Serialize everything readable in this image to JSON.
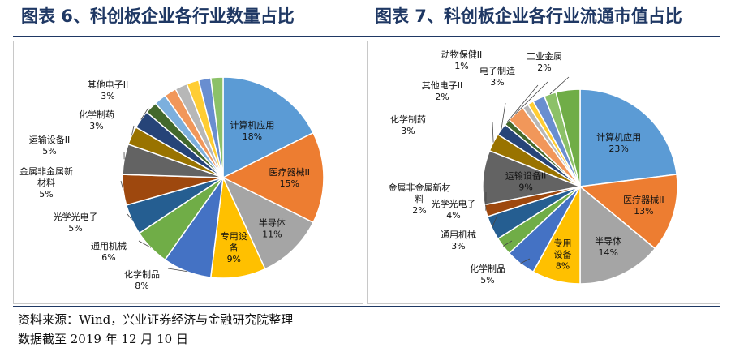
{
  "titles": {
    "left": "图表 6、科创板企业各行业数量占比",
    "right": "图表 7、科创板企业各行业流通市值占比"
  },
  "footer": {
    "source": "资料来源：Wind，兴业证券经济与金融研究院整理",
    "date": "数据截至 2019 年 12 月 10 日"
  },
  "chart_data": [
    {
      "type": "pie",
      "title": "图表 6、科创板企业各行业数量占比",
      "unit": "%",
      "slices": [
        {
          "label": "计算机应用",
          "value": 18,
          "color": "#5b9bd5"
        },
        {
          "label": "医疗器械II",
          "value": 15,
          "color": "#ed7d31"
        },
        {
          "label": "半导体",
          "value": 11,
          "color": "#a5a5a5"
        },
        {
          "label": "专用设备",
          "value": 9,
          "color": "#ffc000"
        },
        {
          "label": "化学制品",
          "value": 8,
          "color": "#4472c4"
        },
        {
          "label": "通用机械",
          "value": 6,
          "color": "#70ad47"
        },
        {
          "label": "光学光电子",
          "value": 5,
          "color": "#255e91"
        },
        {
          "label": "金属非金属新材料",
          "value": 5,
          "color": "#9e480e"
        },
        {
          "label": "运输设备II",
          "value": 5,
          "color": "#636363"
        },
        {
          "label": "化学制药",
          "value": 3,
          "color": "#997300"
        },
        {
          "label": "其他电子II",
          "value": 3,
          "color": "#264478"
        },
        {
          "label": "",
          "value": 2,
          "color": "#43682b"
        },
        {
          "label": "",
          "value": 2,
          "color": "#7cafdd"
        },
        {
          "label": "",
          "value": 2,
          "color": "#f1975a"
        },
        {
          "label": "",
          "value": 2,
          "color": "#b7b7b7"
        },
        {
          "label": "",
          "value": 2,
          "color": "#ffcd33"
        },
        {
          "label": "",
          "value": 2,
          "color": "#698ed0"
        },
        {
          "label": "",
          "value": 2,
          "color": "#8cc168"
        }
      ]
    },
    {
      "type": "pie",
      "title": "图表 7、科创板企业各行业流通市值占比",
      "unit": "%",
      "slices": [
        {
          "label": "计算机应用",
          "value": 23,
          "color": "#5b9bd5"
        },
        {
          "label": "医疗器械II",
          "value": 13,
          "color": "#ed7d31"
        },
        {
          "label": "半导体",
          "value": 14,
          "color": "#a5a5a5"
        },
        {
          "label": "专用设备",
          "value": 8,
          "color": "#ffc000"
        },
        {
          "label": "化学制品",
          "value": 5,
          "color": "#4472c4"
        },
        {
          "label": "通用机械",
          "value": 3,
          "color": "#70ad47"
        },
        {
          "label": "光学光电子",
          "value": 4,
          "color": "#255e91"
        },
        {
          "label": "金属非金属新材料",
          "value": 2,
          "color": "#9e480e"
        },
        {
          "label": "运输设备II",
          "value": 9,
          "color": "#636363"
        },
        {
          "label": "化学制药",
          "value": 3,
          "color": "#997300"
        },
        {
          "label": "其他电子II",
          "value": 2,
          "color": "#264478"
        },
        {
          "label": "动物保健II",
          "value": 1,
          "color": "#43682b"
        },
        {
          "label": "电子制造",
          "value": 3,
          "color": "#f1975a"
        },
        {
          "label": "",
          "value": 1,
          "color": "#b7b7b7"
        },
        {
          "label": "",
          "value": 1,
          "color": "#ffcd33"
        },
        {
          "label": "",
          "value": 2,
          "color": "#698ed0"
        },
        {
          "label": "工业金属",
          "value": 2,
          "color": "#8cc168"
        },
        {
          "label": "",
          "value": 4,
          "color": "#70ad47"
        }
      ]
    }
  ]
}
